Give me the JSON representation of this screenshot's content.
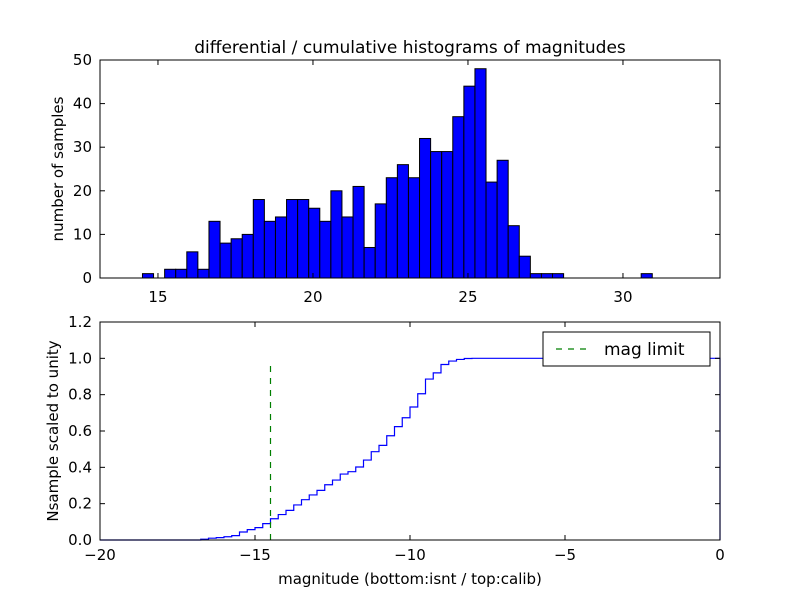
{
  "chart_data": [
    {
      "type": "bar",
      "title": "differential / cumulative histograms of magnitudes",
      "xlabel": "",
      "ylabel": "number of samples",
      "xlim": [
        13.13,
        33.13
      ],
      "ylim": [
        0,
        50
      ],
      "xticks": [
        "15",
        "20",
        "25",
        "30"
      ],
      "yticks": [
        "0",
        "10",
        "20",
        "30",
        "40",
        "50"
      ],
      "bin_start": 14.5,
      "bin_width": 0.3575,
      "values": [
        1,
        0,
        2,
        2,
        6,
        2,
        13,
        8,
        9,
        10,
        18,
        13,
        14,
        18,
        18,
        16,
        13,
        20,
        14,
        21,
        7,
        17,
        23,
        26,
        23,
        32,
        29,
        29,
        37,
        44,
        48,
        22,
        27,
        12,
        5,
        1,
        1,
        1,
        0,
        0,
        0,
        0,
        0,
        0,
        0,
        1
      ],
      "color": "#0000ff",
      "grid": false
    },
    {
      "type": "line",
      "style": "step",
      "xlabel": "magnitude (bottom:isnt / top:calib)",
      "ylabel": "Nsample scaled to unity",
      "xlim": [
        -20,
        0
      ],
      "ylim": [
        0,
        1.2
      ],
      "xticks": [
        "−20",
        "−15",
        "−10",
        "−5",
        "0"
      ],
      "yticks": [
        "0.0",
        "0.2",
        "0.4",
        "0.6",
        "0.8",
        "1.0",
        "1.2"
      ],
      "step_start": -16.75,
      "step_width": 0.25,
      "values": [
        0.004,
        0.01,
        0.013,
        0.018,
        0.024,
        0.044,
        0.057,
        0.068,
        0.09,
        0.117,
        0.14,
        0.163,
        0.193,
        0.222,
        0.248,
        0.273,
        0.304,
        0.33,
        0.363,
        0.376,
        0.402,
        0.44,
        0.486,
        0.521,
        0.574,
        0.624,
        0.673,
        0.732,
        0.805,
        0.886,
        0.92,
        0.966,
        0.985,
        0.994,
        0.999,
        1.0
      ],
      "end_x": 0,
      "line_color": "#0000ff",
      "mag_limit": {
        "x": -14.5,
        "y_top": 0.97,
        "color": "#007f00"
      },
      "legend": {
        "label": "mag limit",
        "placement": "top-right"
      },
      "grid": false
    }
  ]
}
